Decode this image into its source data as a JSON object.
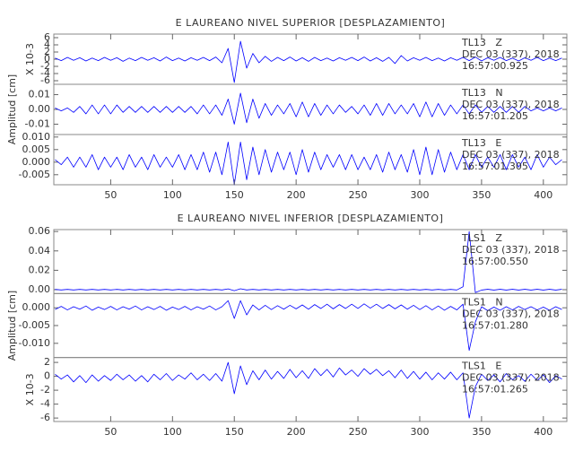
{
  "chart_data": [
    {
      "type": "line",
      "title": "E LAUREANO NIVEL SUPERIOR [DESPLAZAMIENTO]",
      "y_label": "Amplitud [cm]",
      "xlim": [
        4,
        419
      ],
      "xticks": [
        50,
        100,
        150,
        200,
        250,
        300,
        350,
        400
      ],
      "x": [
        5,
        10,
        15,
        20,
        25,
        30,
        35,
        40,
        45,
        50,
        55,
        60,
        65,
        70,
        75,
        80,
        85,
        90,
        95,
        100,
        105,
        110,
        115,
        120,
        125,
        130,
        135,
        140,
        145,
        150,
        155,
        160,
        165,
        170,
        175,
        180,
        185,
        190,
        195,
        200,
        205,
        210,
        215,
        220,
        225,
        230,
        235,
        240,
        245,
        250,
        255,
        260,
        265,
        270,
        275,
        280,
        285,
        290,
        295,
        300,
        305,
        310,
        315,
        320,
        325,
        330,
        335,
        340,
        345,
        350,
        355,
        360,
        365,
        370,
        375,
        380,
        385,
        390,
        395,
        400,
        405,
        410,
        415
      ],
      "series": [
        {
          "name": "TL13   Z",
          "color": "#0000ff",
          "scale_label": "X 10-3",
          "annotation": [
            "DEC 03 (337), 2018",
            "16:57:00.925"
          ],
          "ylim": [
            -7,
            7
          ],
          "yticks": [
            -6,
            -4,
            -2,
            0,
            2,
            4,
            6
          ],
          "values": [
            0.3,
            -0.4,
            0.5,
            -0.3,
            0.4,
            -0.5,
            0.3,
            -0.4,
            0.5,
            -0.3,
            0.4,
            -0.6,
            0.3,
            -0.4,
            0.5,
            -0.3,
            0.4,
            -0.5,
            0.6,
            -0.4,
            0.3,
            -0.5,
            0.4,
            -0.3,
            0.5,
            -0.4,
            0.6,
            -1.0,
            3.0,
            -6.5,
            5.0,
            -2.5,
            1.6,
            -1.0,
            0.8,
            -0.6,
            0.5,
            -0.4,
            0.6,
            -0.5,
            0.4,
            -0.6,
            0.5,
            -0.4,
            0.3,
            -0.5,
            0.4,
            -0.3,
            0.5,
            -0.4,
            0.6,
            -0.5,
            0.4,
            -0.6,
            0.5,
            -1.2,
            1.0,
            -0.5,
            0.4,
            -0.3,
            0.5,
            -0.4,
            0.3,
            -0.5,
            0.4,
            -0.3,
            0.5,
            -0.4,
            0.6,
            -0.5,
            0.4,
            -0.3,
            0.5,
            -0.4,
            0.3,
            -0.5,
            0.4,
            -0.3,
            0.5,
            -0.4,
            0.3,
            -0.4,
            0.3
          ]
        },
        {
          "name": "TL13   N",
          "color": "#0000ff",
          "annotation": [
            "DEC 03 (337), 2018",
            "16:57:01.205"
          ],
          "ylim": [
            -0.017,
            0.017
          ],
          "yticks": [
            -0.01,
            {
              "value": 0,
              "label": "0.00"
            },
            0.01
          ],
          "values": [
            0.001,
            -0.001,
            0.001,
            -0.002,
            0.002,
            -0.003,
            0.003,
            -0.003,
            0.003,
            -0.003,
            0.003,
            -0.002,
            0.002,
            -0.002,
            0.002,
            -0.002,
            0.002,
            -0.002,
            0.002,
            -0.002,
            0.002,
            -0.002,
            0.002,
            -0.003,
            0.003,
            -0.003,
            0.003,
            -0.004,
            0.007,
            -0.01,
            0.011,
            -0.009,
            0.007,
            -0.006,
            0.004,
            -0.004,
            0.003,
            -0.003,
            0.004,
            -0.005,
            0.005,
            -0.005,
            0.004,
            -0.004,
            0.003,
            -0.003,
            0.003,
            -0.002,
            0.002,
            -0.003,
            0.003,
            -0.004,
            0.004,
            -0.004,
            0.004,
            -0.003,
            0.003,
            -0.003,
            0.004,
            -0.005,
            0.005,
            -0.005,
            0.004,
            -0.004,
            0.003,
            -0.003,
            0.003,
            -0.003,
            0.003,
            -0.002,
            0.002,
            -0.002,
            0.002,
            -0.002,
            0.002,
            -0.002,
            0.002,
            -0.001,
            0.001,
            -0.001,
            0.001,
            -0.001,
            0.001
          ]
        },
        {
          "name": "TL13   E",
          "color": "#0000ff",
          "annotation": [
            "DEC 03 (337), 2018",
            "16:57:01.305"
          ],
          "ylim": [
            -0.009,
            0.011
          ],
          "yticks": [
            -0.005,
            {
              "value": 0,
              "label": "0.000"
            },
            0.005,
            {
              "value": 0.01,
              "label": "0.010"
            }
          ],
          "values": [
            0.001,
            -0.001,
            0.002,
            -0.002,
            0.002,
            -0.002,
            0.003,
            -0.003,
            0.002,
            -0.002,
            0.002,
            -0.003,
            0.003,
            -0.002,
            0.002,
            -0.003,
            0.003,
            -0.002,
            0.002,
            -0.002,
            0.003,
            -0.003,
            0.003,
            -0.003,
            0.004,
            -0.004,
            0.004,
            -0.005,
            0.008,
            -0.009,
            0.008,
            -0.007,
            0.006,
            -0.005,
            0.005,
            -0.004,
            0.004,
            -0.003,
            0.004,
            -0.005,
            0.005,
            -0.004,
            0.004,
            -0.003,
            0.003,
            -0.002,
            0.003,
            -0.003,
            0.003,
            -0.003,
            0.002,
            -0.003,
            0.003,
            -0.004,
            0.004,
            -0.003,
            0.003,
            -0.004,
            0.005,
            -0.005,
            0.006,
            -0.005,
            0.005,
            -0.004,
            0.004,
            -0.003,
            0.003,
            -0.003,
            0.003,
            -0.002,
            0.002,
            -0.002,
            0.003,
            -0.003,
            0.003,
            -0.002,
            0.002,
            -0.003,
            0.003,
            -0.002,
            0.002,
            -0.001,
            0.001
          ]
        }
      ]
    },
    {
      "type": "line",
      "title": "E LAUREANO NIVEL INFERIOR [DESPLAZAMIENTO]",
      "y_label": "Amplitud [cm]",
      "xlim": [
        4,
        419
      ],
      "xticks": [
        50,
        100,
        150,
        200,
        250,
        300,
        350,
        400
      ],
      "x": [
        5,
        10,
        15,
        20,
        25,
        30,
        35,
        40,
        45,
        50,
        55,
        60,
        65,
        70,
        75,
        80,
        85,
        90,
        95,
        100,
        105,
        110,
        115,
        120,
        125,
        130,
        135,
        140,
        145,
        150,
        155,
        160,
        165,
        170,
        175,
        180,
        185,
        190,
        195,
        200,
        205,
        210,
        215,
        220,
        225,
        230,
        235,
        240,
        245,
        250,
        255,
        260,
        265,
        270,
        275,
        280,
        285,
        290,
        295,
        300,
        305,
        310,
        315,
        320,
        325,
        330,
        335,
        340,
        345,
        350,
        355,
        360,
        365,
        370,
        375,
        380,
        385,
        390,
        395,
        400,
        405,
        410,
        415
      ],
      "series": [
        {
          "name": "TLS1   Z",
          "color": "#0000ff",
          "annotation": [
            "DEC 03 (337), 2018",
            "16:57:00.550"
          ],
          "ylim": [
            -0.004,
            0.062
          ],
          "yticks": [
            {
              "value": 0,
              "label": "0.00"
            },
            0.02,
            0.04,
            0.06
          ],
          "values": [
            0.0003,
            -0.0003,
            0.0003,
            -0.0003,
            0.0003,
            -0.0003,
            0.0003,
            -0.0003,
            0.0003,
            -0.0003,
            0.0003,
            -0.0003,
            0.0003,
            -0.0003,
            0.0003,
            -0.0003,
            0.0003,
            -0.0003,
            0.0003,
            -0.0003,
            0.0003,
            -0.0003,
            0.0003,
            -0.0003,
            0.0003,
            -0.0003,
            0.0003,
            -0.0003,
            0.0008,
            -0.001,
            0.0009,
            -0.0003,
            0.0003,
            -0.0003,
            0.0003,
            -0.0003,
            0.0003,
            -0.0003,
            0.0003,
            -0.0003,
            0.0003,
            -0.0003,
            0.0003,
            -0.0003,
            0.0003,
            -0.0003,
            0.0003,
            -0.0003,
            0.0003,
            -0.0003,
            0.0003,
            -0.0003,
            0.0003,
            -0.0003,
            0.0003,
            -0.0003,
            0.0003,
            -0.0003,
            0.0003,
            -0.0003,
            0.0003,
            -0.0003,
            0.0003,
            -0.0003,
            0.0003,
            -0.0003,
            0.003,
            0.06,
            -0.003,
            -0.0004,
            0.0004,
            -0.0004,
            0.0004,
            -0.0004,
            0.0004,
            -0.0004,
            0.0004,
            -0.0004,
            0.0004,
            -0.0004,
            0.0004,
            -0.0004,
            0.0004
          ]
        },
        {
          "name": "TLS1   N",
          "color": "#0000ff",
          "annotation": [
            "DEC 03 (337), 2018",
            "16:57:01.280"
          ],
          "ylim": [
            -0.014,
            0.004
          ],
          "yticks": [
            {
              "value": -0.01,
              "label": "-0.010"
            },
            -0.005,
            {
              "value": 0,
              "label": "0.000"
            }
          ],
          "values": [
            -0.0005,
            0.0004,
            -0.0006,
            0.0003,
            -0.0004,
            0.0005,
            -0.0007,
            0.0002,
            -0.0005,
            0.0004,
            -0.0006,
            0.0003,
            -0.0004,
            0.0005,
            -0.0006,
            0.0003,
            -0.0005,
            0.0004,
            -0.0007,
            0.0002,
            -0.0005,
            0.0004,
            -0.0006,
            0.0003,
            -0.0004,
            0.0005,
            -0.0006,
            0.0003,
            0.002,
            -0.003,
            0.002,
            -0.002,
            0.0008,
            -0.0006,
            0.0007,
            -0.0005,
            0.0006,
            -0.0004,
            0.0007,
            -0.0003,
            0.0008,
            -0.0004,
            0.0009,
            -0.0002,
            0.001,
            -0.0003,
            0.0009,
            -0.0002,
            0.001,
            -0.0002,
            0.0011,
            -0.0001,
            0.001,
            -0.0002,
            0.0009,
            -0.0003,
            0.0008,
            -0.0004,
            0.0007,
            -0.0005,
            0.0006,
            -0.0006,
            0.0005,
            -0.0007,
            0.0004,
            -0.0006,
            0.001,
            -0.012,
            -0.004,
            0.0003,
            -0.0008,
            0.0002,
            -0.0007,
            0.0003,
            -0.0006,
            0.0004,
            -0.0005,
            0.0003,
            -0.0006,
            0.0002,
            -0.0007,
            0.0003,
            -0.0005
          ]
        },
        {
          "name": "TLS1   E",
          "color": "#0000ff",
          "scale_label": "X 10-3",
          "annotation": [
            "DEC 03 (337), 2018",
            "16:57:01.265"
          ],
          "ylim": [
            -6.5,
            2.7
          ],
          "yticks": [
            -6,
            -4,
            -2,
            0,
            2
          ],
          "values": [
            0.3,
            -0.4,
            0.2,
            -0.8,
            0.1,
            -0.9,
            0.2,
            -0.7,
            0.1,
            -0.6,
            0.3,
            -0.5,
            0.2,
            -0.7,
            0.1,
            -0.8,
            0.3,
            -0.5,
            0.4,
            -0.6,
            0.2,
            -0.4,
            0.5,
            -0.5,
            0.3,
            -0.6,
            0.4,
            -0.7,
            2.0,
            -2.5,
            1.5,
            -1.2,
            0.8,
            -0.5,
            0.9,
            -0.4,
            0.7,
            -0.3,
            1.0,
            -0.2,
            0.8,
            -0.3,
            1.1,
            0.1,
            1.0,
            -0.1,
            1.2,
            0.2,
            0.9,
            0.0,
            1.1,
            0.3,
            1.0,
            0.1,
            0.8,
            -0.2,
            0.9,
            -0.3,
            0.7,
            -0.4,
            0.6,
            -0.5,
            0.5,
            -0.4,
            0.6,
            -0.5,
            0.5,
            -6.0,
            -1.5,
            0.3,
            -0.6,
            0.2,
            -0.8,
            0.4,
            -0.5,
            0.1,
            -0.7,
            0.3,
            -0.6,
            0.2,
            -0.9,
            0.1,
            -0.4
          ]
        }
      ]
    }
  ]
}
